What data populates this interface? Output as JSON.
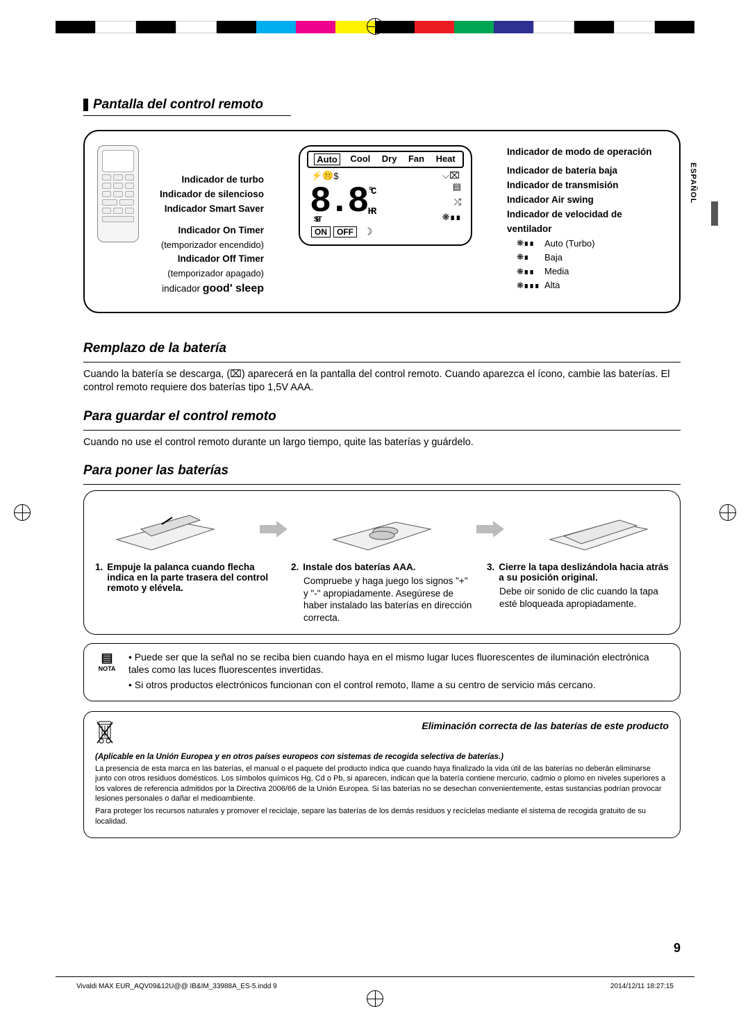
{
  "cropbar_colors": [
    "#000000",
    "#ffffff",
    "#000000",
    "#ffffff",
    "#000000",
    "#00aeef",
    "#ec008c",
    "#fff200",
    "#000000",
    "#ed1c24",
    "#00a651",
    "#2e3192",
    "#ffffff",
    "#000000",
    "#ffffff",
    "#000000"
  ],
  "side_lang": "ESPAÑOL",
  "section1_title": "Pantalla del control remoto",
  "labels_left": {
    "turbo": "Indicador de turbo",
    "silencioso": "Indicador de silencioso",
    "smart": "Indicador Smart Saver",
    "ontimer": "Indicador On Timer",
    "ontimer_sub": "(temporizador encendido)",
    "offtimer": "Indicador Off Timer",
    "offtimer_sub": "(temporizador apagado)",
    "goodsleep_pre": "indicador",
    "goodsleep": "good' sleep"
  },
  "modes": {
    "auto": "Auto",
    "cool": "Cool",
    "dry": "Dry",
    "fan": "Fan",
    "heat": "Heat"
  },
  "seg_value": "8.8",
  "seg_set": "SET",
  "unit_c": "°C",
  "unit_hr": "HR",
  "on_label": "ON",
  "off_label": "OFF",
  "labels_right": {
    "mode": "Indicador de modo de operación",
    "lowbat": "Indicador de batería baja",
    "trans": "Indicador de transmisión",
    "airswing": "Indicador Air swing",
    "fanspeed": "Indicador de velocidad de ventilador"
  },
  "fan_levels": [
    {
      "icon": "❋∎∎",
      "label": "Auto (Turbo)"
    },
    {
      "icon": "❋∎",
      "label": "Baja"
    },
    {
      "icon": "❋∎∎",
      "label": "Media"
    },
    {
      "icon": "❋∎∎∎",
      "label": "Alta"
    }
  ],
  "section2_title": "Remplazo de la batería",
  "section2_body": "Cuando la batería se descarga, (⌧) aparecerá en la pantalla del control remoto. Cuando aparezca el ícono, cambie las baterías. El control remoto requiere dos baterías tipo 1,5V AAA.",
  "section3_title": "Para guardar el control remoto",
  "section3_body": "Cuando no use el control remoto durante un largo tiempo, quite las baterías y guárdelo.",
  "section4_title": "Para poner las baterías",
  "steps": [
    {
      "num": "1.",
      "head": "Empuje la palanca cuando flecha indica en la parte trasera del control remoto y elévela.",
      "body": ""
    },
    {
      "num": "2.",
      "head": "Instale dos baterías AAA.",
      "body": "Compruebe y haga juego los signos \"+\" y \"-\" apropiadamente. Asegúrese de haber instalado las baterías en dirección correcta."
    },
    {
      "num": "3.",
      "head": "Cierre la tapa deslizándola hacia atrás a su posición original.",
      "body": "Debe oir sonido de clic cuando la tapa esté bloqueada apropiadamente."
    }
  ],
  "note_label": "NOTA",
  "notes": [
    "Puede ser que la señal no se reciba bien cuando haya en el mismo lugar luces fluorescentes de iluminación electrónica tales como las luces fluorescentes invertidas.",
    "Si otros productos electrónicos funcionan con el control remoto, llame a su centro de servicio más cercano."
  ],
  "dispose": {
    "title": "Eliminación correcta de las baterías de este producto",
    "sub": "(Aplicable en la Unión Europea y en otros países europeos con sistemas de recogida selectiva de baterías.)",
    "p1": "La presencia de esta marca en las baterías, el manual o el paquete del producto indica que cuando haya finalizado la vida útil de las baterías no deberán eliminarse junto con otros residuos domésticos. Los símbolos químicos Hg, Cd o Pb, si aparecen, indican que la batería contiene mercurio, cadmio o plomo en niveles superiores a los valores de referencia admitidos por la Directiva 2006/66 de la Unión Europea. Si las baterías no se desechan convenientemente, estas sustancias podrían provocar lesiones personales o dañar el medioambiente.",
    "p2": "Para proteger los recursos naturales y promover el reciclaje, separe las baterías de los demás residuos y recíclelas mediante el sistema de recogida gratuito de su localidad."
  },
  "page_number": "9",
  "footer_file": "Vivaldi MAX EUR_AQV09&12U@@ IB&IM_33988A_ES-5.indd   9",
  "footer_date": "2014/12/11   18:27:15"
}
